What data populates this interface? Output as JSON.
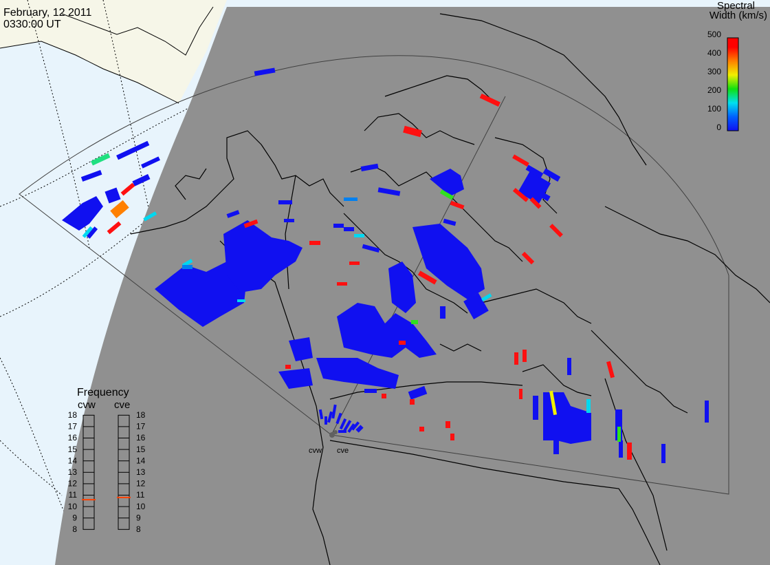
{
  "title": {
    "date": "February, 12 2011",
    "time": "0330:00 UT"
  },
  "colorbar": {
    "title_line1": "Spectral",
    "title_line2": "Width (km/s)",
    "ticks": [
      "500",
      "400",
      "300",
      "200",
      "100",
      "0"
    ],
    "scale": [
      "#1010f0",
      "#00a0ff",
      "#00f0f0",
      "#10e010",
      "#f0f000",
      "#ff8000",
      "#ff0000"
    ]
  },
  "stations": [
    {
      "label": "cvw"
    },
    {
      "label": "cve"
    }
  ],
  "frequency": {
    "title": "Frequency",
    "left_label": "cvw",
    "right_label": "cve",
    "ticks": [
      "18",
      "17",
      "16",
      "15",
      "14",
      "13",
      "12",
      "11",
      "10",
      "9",
      "8"
    ],
    "cvw_mhz": 10.6,
    "cve_mhz": 10.8,
    "marker_color": "#ff4000"
  },
  "colors": {
    "night_shade": "#909090",
    "day_ocean": "#e8f4fc",
    "day_land": "#f6f6e8",
    "coast": "#000000",
    "fov": "#404040"
  }
}
